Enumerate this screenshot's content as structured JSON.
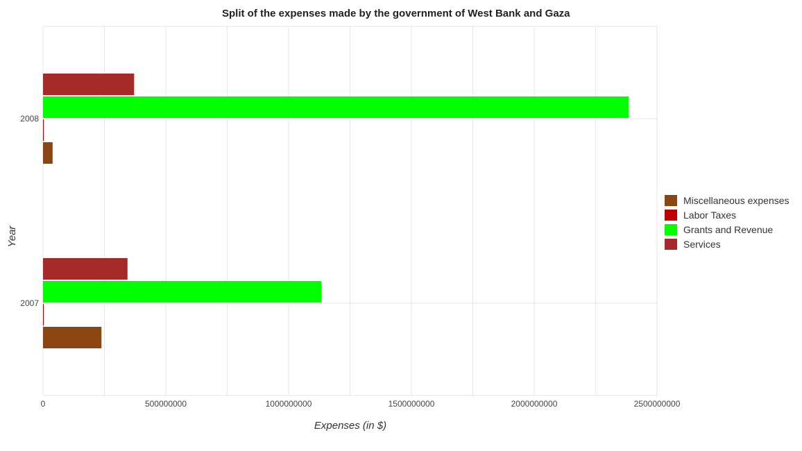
{
  "chart_data": {
    "type": "bar",
    "orientation": "horizontal",
    "title": "Split of the expenses made by the government of West Bank and Gaza",
    "xlabel": "Expenses (in $)",
    "ylabel": "Year",
    "categories": [
      "2007",
      "2008"
    ],
    "xlim": [
      0,
      2500000000
    ],
    "xticks": [
      0,
      500000000,
      1000000000,
      1500000000,
      2000000000,
      2500000000
    ],
    "xtick_labels": [
      "0",
      "500000000",
      "1000000000",
      "1500000000",
      "2000000000",
      "2500000000"
    ],
    "grid": true,
    "legend_position": "right",
    "series": [
      {
        "name": "Miscellaneous expenses",
        "color": "#8B4513",
        "values": [
          238000000,
          39000000
        ]
      },
      {
        "name": "Labor Taxes",
        "color": "#C00000",
        "values": [
          1500000,
          3000000
        ]
      },
      {
        "name": "Grants and Revenue",
        "color": "#00FF00",
        "values": [
          1133000000,
          2385000000
        ]
      },
      {
        "name": "Services",
        "color": "#A52A2A",
        "values": [
          344000000,
          371000000
        ]
      }
    ]
  }
}
